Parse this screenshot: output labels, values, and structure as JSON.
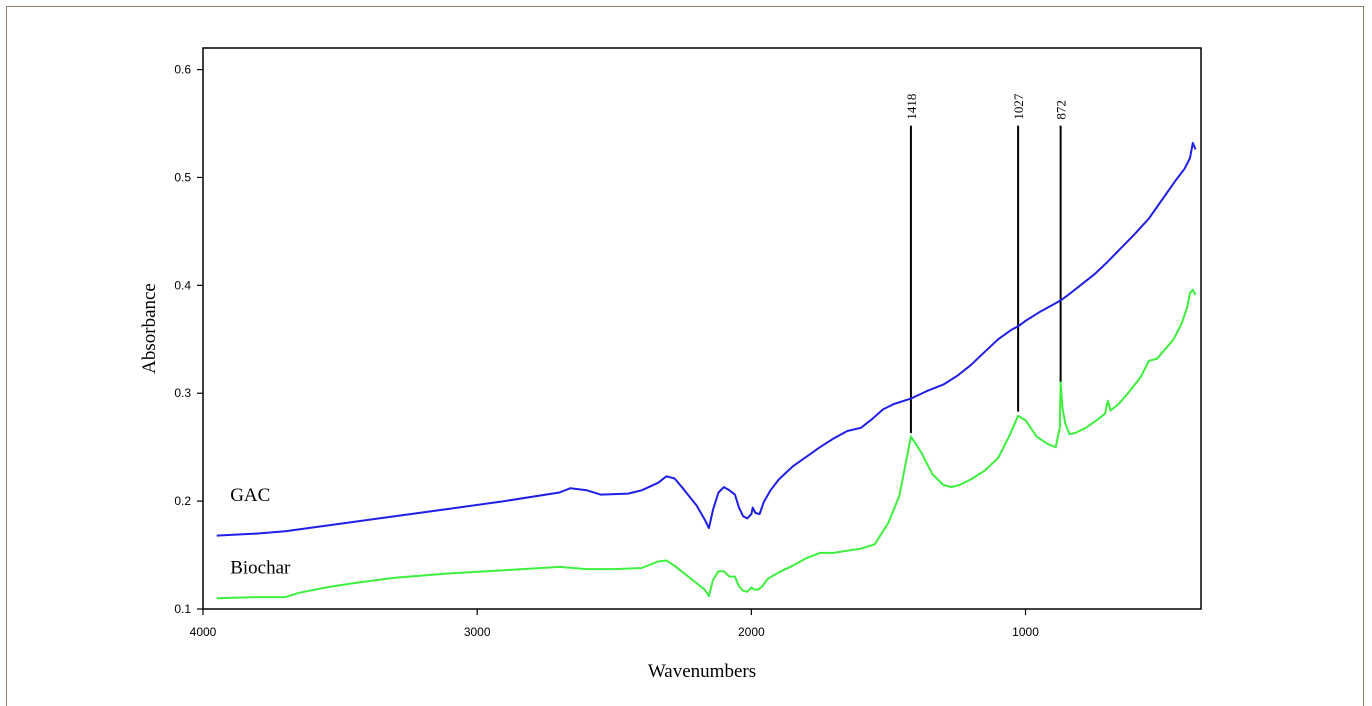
{
  "chart_data": {
    "type": "line",
    "xlabel": "Wavenumbers",
    "ylabel": "Absorbance",
    "xlim": [
      4000,
      360
    ],
    "ylim": [
      0.1,
      0.62
    ],
    "x_ticks": [
      4000,
      3000,
      2000,
      1000
    ],
    "y_ticks": [
      0.1,
      0.2,
      0.3,
      0.4,
      0.5,
      0.6
    ],
    "x_tick_labels": [
      "4000",
      "3000",
      "2000",
      "1000"
    ],
    "y_tick_labels": [
      "0.1",
      "0.2",
      "0.3",
      "0.4",
      "0.5",
      "0.6"
    ],
    "grid": false,
    "series": [
      {
        "name": "GAC",
        "color": "#1f1fe6",
        "x": [
          3950,
          3800,
          3700,
          3500,
          3300,
          3100,
          2900,
          2700,
          2660,
          2600,
          2550,
          2450,
          2400,
          2340,
          2310,
          2280,
          2250,
          2200,
          2170,
          2155,
          2140,
          2120,
          2100,
          2080,
          2060,
          2045,
          2030,
          2015,
          2000,
          1995,
          1985,
          1970,
          1955,
          1930,
          1900,
          1850,
          1800,
          1750,
          1700,
          1650,
          1600,
          1560,
          1520,
          1480,
          1418,
          1360,
          1300,
          1250,
          1200,
          1150,
          1100,
          1050,
          1027,
          1000,
          950,
          900,
          872,
          850,
          800,
          750,
          700,
          650,
          600,
          550,
          500,
          450,
          420,
          400,
          390,
          380
        ],
        "y": [
          0.168,
          0.17,
          0.172,
          0.179,
          0.186,
          0.193,
          0.2,
          0.208,
          0.212,
          0.21,
          0.206,
          0.207,
          0.21,
          0.217,
          0.223,
          0.221,
          0.212,
          0.196,
          0.183,
          0.175,
          0.192,
          0.208,
          0.213,
          0.21,
          0.206,
          0.194,
          0.186,
          0.184,
          0.188,
          0.194,
          0.189,
          0.188,
          0.199,
          0.21,
          0.22,
          0.232,
          0.241,
          0.25,
          0.258,
          0.265,
          0.268,
          0.276,
          0.285,
          0.29,
          0.295,
          0.302,
          0.308,
          0.316,
          0.326,
          0.338,
          0.35,
          0.359,
          0.362,
          0.367,
          0.375,
          0.382,
          0.386,
          0.39,
          0.4,
          0.41,
          0.422,
          0.435,
          0.448,
          0.462,
          0.48,
          0.498,
          0.508,
          0.518,
          0.532,
          0.526
        ]
      },
      {
        "name": "Biochar",
        "color": "#3ef03e",
        "x": [
          3950,
          3800,
          3700,
          3650,
          3550,
          3450,
          3300,
          3100,
          2900,
          2700,
          2600,
          2500,
          2400,
          2340,
          2310,
          2280,
          2250,
          2200,
          2170,
          2155,
          2140,
          2120,
          2100,
          2080,
          2060,
          2045,
          2030,
          2015,
          2000,
          1990,
          1975,
          1960,
          1940,
          1900,
          1850,
          1800,
          1750,
          1700,
          1650,
          1600,
          1550,
          1500,
          1460,
          1418,
          1380,
          1340,
          1300,
          1270,
          1240,
          1200,
          1150,
          1100,
          1060,
          1027,
          1000,
          960,
          920,
          890,
          875,
          872,
          865,
          855,
          840,
          820,
          780,
          740,
          710,
          700,
          690,
          660,
          620,
          580,
          550,
          520,
          500,
          460,
          430,
          410,
          400,
          390,
          380
        ],
        "y": [
          0.11,
          0.111,
          0.111,
          0.115,
          0.12,
          0.124,
          0.129,
          0.133,
          0.136,
          0.139,
          0.137,
          0.137,
          0.138,
          0.144,
          0.145,
          0.14,
          0.134,
          0.124,
          0.118,
          0.112,
          0.127,
          0.135,
          0.135,
          0.13,
          0.13,
          0.121,
          0.117,
          0.116,
          0.12,
          0.118,
          0.118,
          0.121,
          0.128,
          0.134,
          0.14,
          0.147,
          0.152,
          0.152,
          0.154,
          0.156,
          0.16,
          0.18,
          0.205,
          0.26,
          0.245,
          0.225,
          0.215,
          0.213,
          0.215,
          0.22,
          0.228,
          0.24,
          0.26,
          0.279,
          0.275,
          0.26,
          0.253,
          0.25,
          0.268,
          0.31,
          0.286,
          0.272,
          0.262,
          0.263,
          0.268,
          0.275,
          0.281,
          0.293,
          0.284,
          0.29,
          0.302,
          0.315,
          0.33,
          0.332,
          0.338,
          0.35,
          0.365,
          0.38,
          0.393,
          0.396,
          0.391
        ]
      }
    ],
    "series_labels": [
      {
        "text": "GAC",
        "anchor_x": 3930,
        "anchor_y": 0.2
      },
      {
        "text": "Biochar",
        "anchor_x": 3930,
        "anchor_y": 0.133
      }
    ],
    "annotations": [
      {
        "text": "1418",
        "x": 1418,
        "y_top": 0.548,
        "y_bottom": 0.263
      },
      {
        "text": "1027",
        "x": 1027,
        "y_top": 0.548,
        "y_bottom": 0.283
      },
      {
        "text": "872",
        "x": 872,
        "y_top": 0.548,
        "y_bottom": 0.31
      }
    ]
  }
}
